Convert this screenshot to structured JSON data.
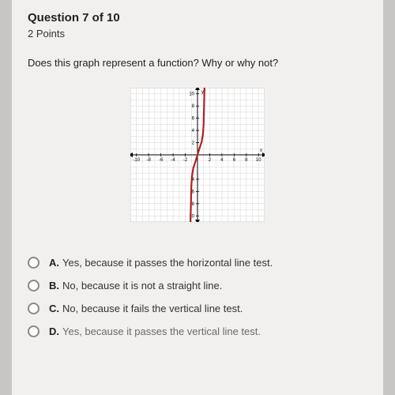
{
  "header": {
    "question_number": "Question 7 of 10",
    "points": "2 Points"
  },
  "prompt": "Does this graph represent a function? Why or why not?",
  "chart": {
    "type": "line",
    "xlim": [
      -11,
      11
    ],
    "ylim": [
      -11,
      11
    ],
    "grid_step": 1,
    "major_tick_step": 2,
    "x_ticks": [
      "-10",
      "-8",
      "-6",
      "-4",
      "-2",
      "2",
      "4",
      "6",
      "8",
      "10"
    ],
    "y_ticks_pos": [
      "2",
      "4",
      "6",
      "8",
      "10"
    ],
    "y_ticks_neg": [
      "4",
      "6",
      "8",
      "10"
    ],
    "axis_labels": {
      "x": "x",
      "y": "y"
    },
    "background_color": "#ffffff",
    "grid_color": "#c9c9c9",
    "axis_color": "#000000",
    "curve_color": "#b22020",
    "curve_width": 2.2,
    "tick_fontsize": 6,
    "curve_points": [
      [
        1.15,
        11
      ],
      [
        1.1,
        9
      ],
      [
        1.05,
        7
      ],
      [
        1.0,
        5
      ],
      [
        0.9,
        3.5
      ],
      [
        0.7,
        2.2
      ],
      [
        0.3,
        1.0
      ],
      [
        0.0,
        0.0
      ],
      [
        -0.3,
        -1.0
      ],
      [
        -0.7,
        -2.2
      ],
      [
        -0.9,
        -3.5
      ],
      [
        -1.0,
        -5
      ],
      [
        -1.05,
        -7
      ],
      [
        -1.1,
        -9
      ],
      [
        -1.15,
        -11
      ]
    ]
  },
  "answers": [
    {
      "letter": "A.",
      "text": "Yes, because it passes the horizontal line test."
    },
    {
      "letter": "B.",
      "text": "No, because it is not a straight line."
    },
    {
      "letter": "C.",
      "text": "No, because it fails the vertical line test."
    },
    {
      "letter": "D.",
      "text": "Yes, because it passes the vertical line test."
    }
  ]
}
